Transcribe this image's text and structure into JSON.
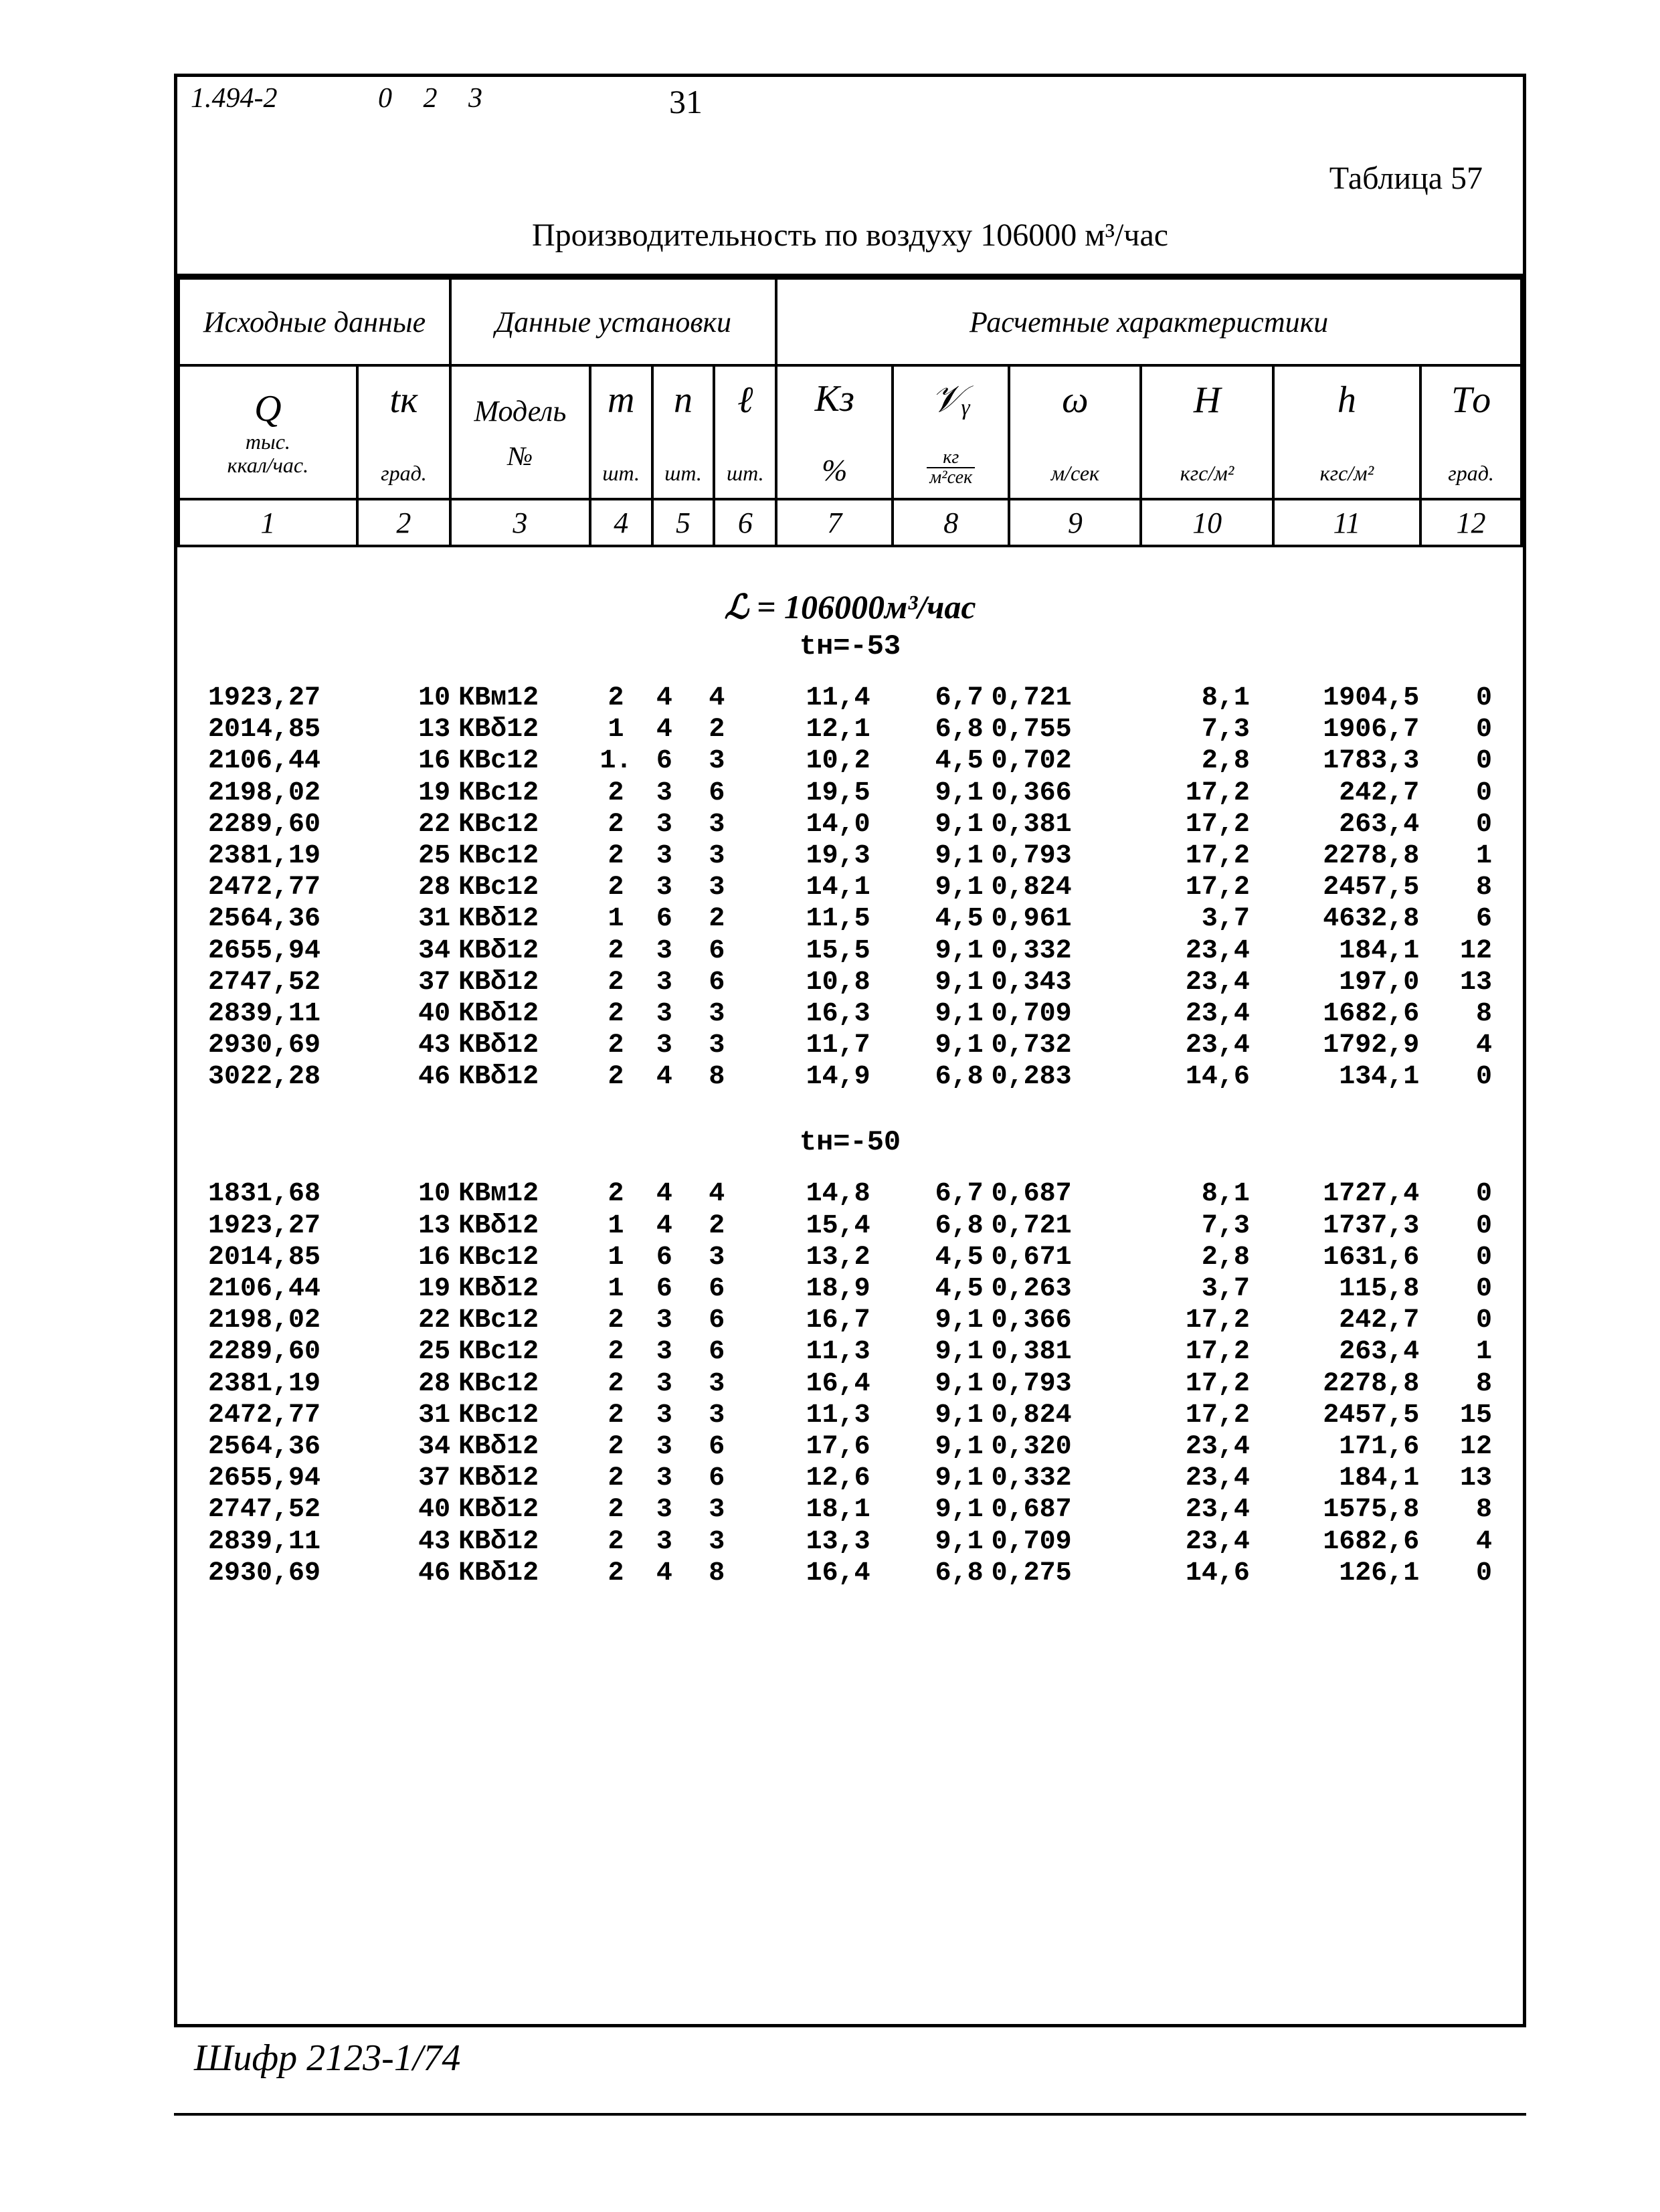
{
  "top": {
    "left_code": "1.494-2",
    "mid_code": "0 2 3",
    "page_number": "31"
  },
  "table_label": "Таблица 57",
  "title": "Производительность по воздуху 106000 м³/час",
  "header_groups": {
    "g1": "Исходные данные",
    "g2": "Данные установки",
    "g3": "Расчетные характеристики"
  },
  "columns": {
    "c1": {
      "sym": "Q",
      "unit1": "тыс.",
      "unit2": "ккал/час.",
      "num": "1"
    },
    "c2": {
      "sym": "tк",
      "unit": "град.",
      "num": "2"
    },
    "c3": {
      "sym": "Модель",
      "unit": "№",
      "unit2": "",
      "num": "3"
    },
    "c4": {
      "sym": "m",
      "unit": "шт.",
      "num": "4"
    },
    "c5": {
      "sym": "n",
      "unit": "шт.",
      "num": "5"
    },
    "c6": {
      "sym": "ℓ",
      "unit": "шт.",
      "num": "6"
    },
    "c7": {
      "sym": "Kз",
      "unit": "%",
      "num": "7"
    },
    "c8": {
      "sym": "𝒱ᵧ",
      "unit_n": "кг",
      "unit_d": "м²сек",
      "num": "8"
    },
    "c9": {
      "sym": "ω",
      "unit": "м/сек",
      "num": "9"
    },
    "c10": {
      "sym": "H",
      "unit": "кгс/м²",
      "num": "10"
    },
    "c11": {
      "sym": "h",
      "unit": "кгс/м²",
      "num": "11"
    },
    "c12": {
      "sym": "Tо",
      "unit": "град.",
      "num": "12"
    }
  },
  "section_title": "ℒ = 106000м³/час",
  "blocks": [
    {
      "sub": "tн=-53",
      "rows": [
        [
          "1923,27",
          "10",
          "КВм12",
          "2",
          "4",
          "4",
          "11,4",
          "6,7",
          "0,721",
          "8,1",
          "1904,5",
          "0"
        ],
        [
          "2014,85",
          "13",
          "КВδ12",
          "1",
          "4",
          "2",
          "12,1",
          "6,8",
          "0,755",
          "7,3",
          "1906,7",
          "0"
        ],
        [
          "2106,44",
          "16",
          "КВс12",
          "1.",
          "6",
          "3",
          "10,2",
          "4,5",
          "0,702",
          "2,8",
          "1783,3",
          "0"
        ],
        [
          "2198,02",
          "19",
          "КВс12",
          "2",
          "3",
          "6",
          "19,5",
          "9,1",
          "0,366",
          "17,2",
          "242,7",
          "0"
        ],
        [
          "2289,60",
          "22",
          "КВс12",
          "2",
          "3",
          "3",
          "14,0",
          "9,1",
          "0,381",
          "17,2",
          "263,4",
          "0"
        ],
        [
          "2381,19",
          "25",
          "КВс12",
          "2",
          "3",
          "3",
          "19,3",
          "9,1",
          "0,793",
          "17,2",
          "2278,8",
          "1"
        ],
        [
          "2472,77",
          "28",
          "КВс12",
          "2",
          "3",
          "3",
          "14,1",
          "9,1",
          "0,824",
          "17,2",
          "2457,5",
          "8"
        ],
        [
          "2564,36",
          "31",
          "КВδ12",
          "1",
          "6",
          "2",
          "11,5",
          "4,5",
          "0,961",
          "3,7",
          "4632,8",
          "6"
        ],
        [
          "2655,94",
          "34",
          "КВδ12",
          "2",
          "3",
          "6",
          "15,5",
          "9,1",
          "0,332",
          "23,4",
          "184,1",
          "12"
        ],
        [
          "2747,52",
          "37",
          "КВδ12",
          "2",
          "3",
          "6",
          "10,8",
          "9,1",
          "0,343",
          "23,4",
          "197,0",
          "13"
        ],
        [
          "2839,11",
          "40",
          "КВδ12",
          "2",
          "3",
          "3",
          "16,3",
          "9,1",
          "0,709",
          "23,4",
          "1682,6",
          "8"
        ],
        [
          "2930,69",
          "43",
          "КВδ12",
          "2",
          "3",
          "3",
          "11,7",
          "9,1",
          "0,732",
          "23,4",
          "1792,9",
          "4"
        ],
        [
          "3022,28",
          "46",
          "КВδ12",
          "2",
          "4",
          "8",
          "14,9",
          "6,8",
          "0,283",
          "14,6",
          "134,1",
          "0"
        ]
      ]
    },
    {
      "sub": "tн=-50",
      "rows": [
        [
          "1831,68",
          "10",
          "КВм12",
          "2",
          "4",
          "4",
          "14,8",
          "6,7",
          "0,687",
          "8,1",
          "1727,4",
          "0"
        ],
        [
          "1923,27",
          "13",
          "КВδ12",
          "1",
          "4",
          "2",
          "15,4",
          "6,8",
          "0,721",
          "7,3",
          "1737,3",
          "0"
        ],
        [
          "2014,85",
          "16",
          "КВс12",
          "1",
          "6",
          "3",
          "13,2",
          "4,5",
          "0,671",
          "2,8",
          "1631,6",
          "0"
        ],
        [
          "2106,44",
          "19",
          "КВδ12",
          "1",
          "6",
          "6",
          "18,9",
          "4,5",
          "0,263",
          "3,7",
          "115,8",
          "0"
        ],
        [
          "2198,02",
          "22",
          "КВс12",
          "2",
          "3",
          "6",
          "16,7",
          "9,1",
          "0,366",
          "17,2",
          "242,7",
          "0"
        ],
        [
          "2289,60",
          "25",
          "КВс12",
          "2",
          "3",
          "6",
          "11,3",
          "9,1",
          "0,381",
          "17,2",
          "263,4",
          "1"
        ],
        [
          "2381,19",
          "28",
          "КВс12",
          "2",
          "3",
          "3",
          "16,4",
          "9,1",
          "0,793",
          "17,2",
          "2278,8",
          "8"
        ],
        [
          "2472,77",
          "31",
          "КВс12",
          "2",
          "3",
          "3",
          "11,3",
          "9,1",
          "0,824",
          "17,2",
          "2457,5",
          "15"
        ],
        [
          "2564,36",
          "34",
          "КВδ12",
          "2",
          "3",
          "6",
          "17,6",
          "9,1",
          "0,320",
          "23,4",
          "171,6",
          "12"
        ],
        [
          "2655,94",
          "37",
          "КВδ12",
          "2",
          "3",
          "6",
          "12,6",
          "9,1",
          "0,332",
          "23,4",
          "184,1",
          "13"
        ],
        [
          "2747,52",
          "40",
          "КВδ12",
          "2",
          "3",
          "3",
          "18,1",
          "9,1",
          "0,687",
          "23,4",
          "1575,8",
          "8"
        ],
        [
          "2839,11",
          "43",
          "КВδ12",
          "2",
          "3",
          "3",
          "13,3",
          "9,1",
          "0,709",
          "23,4",
          "1682,6",
          "4"
        ],
        [
          "2930,69",
          "46",
          "КВδ12",
          "2",
          "4",
          "8",
          "16,4",
          "6,8",
          "0,275",
          "14,6",
          "126,1",
          "0"
        ]
      ]
    }
  ],
  "footer": "Шифр 2123-1/74"
}
